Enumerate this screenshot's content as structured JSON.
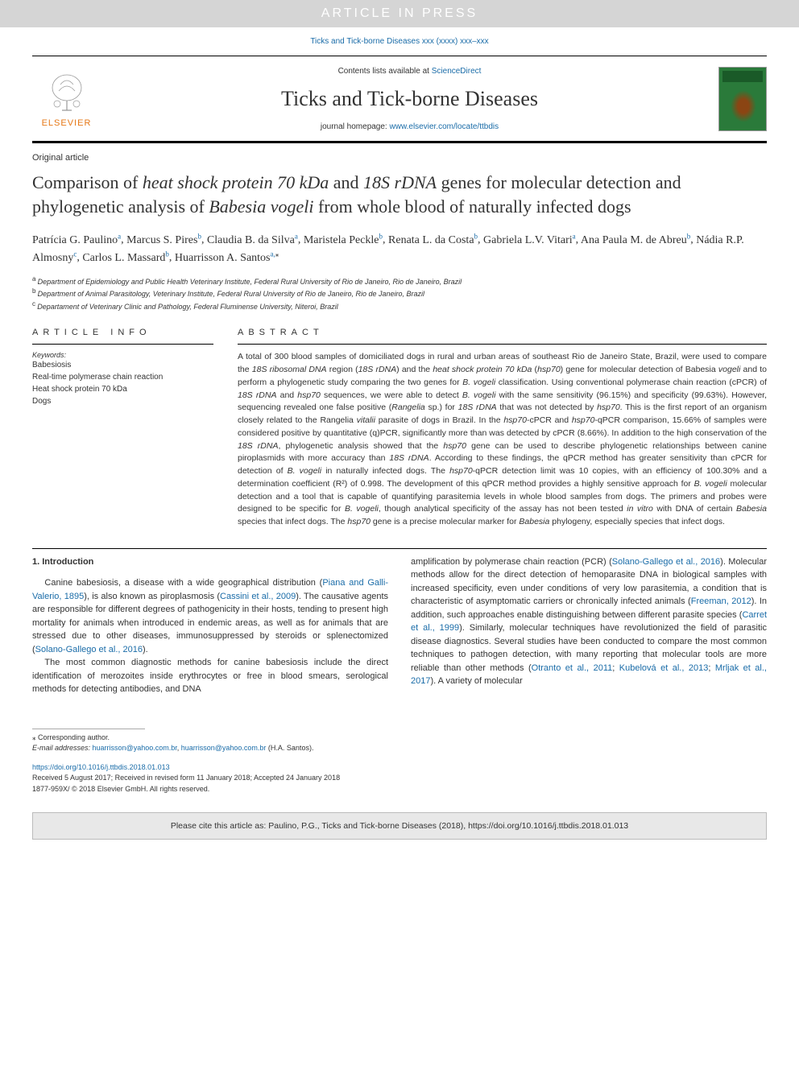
{
  "banner": {
    "text": "ARTICLE IN PRESS"
  },
  "citation_top": "Ticks and Tick-borne Diseases xxx (xxxx) xxx–xxx",
  "header": {
    "contents_prefix": "Contents lists available at ",
    "contents_link": "ScienceDirect",
    "journal_title": "Ticks and Tick-borne Diseases",
    "homepage_prefix": "journal homepage: ",
    "homepage_link": "www.elsevier.com/locate/ttbdis",
    "elsevier_text": "ELSEVIER"
  },
  "article_type": "Original article",
  "title_parts": {
    "p1": "Comparison of ",
    "i1": "heat shock protein 70 kDa",
    "p2": " and ",
    "i2": "18S rDNA",
    "p3": " genes for molecular detection and phylogenetic analysis of ",
    "i3": "Babesia vogeli",
    "p4": " from whole blood of naturally infected dogs"
  },
  "authors": [
    {
      "name": "Patrícia G. Paulino",
      "aff": "a"
    },
    {
      "name": "Marcus S. Pires",
      "aff": "b"
    },
    {
      "name": "Claudia B. da Silva",
      "aff": "a"
    },
    {
      "name": "Maristela Peckle",
      "aff": "b"
    },
    {
      "name": "Renata L. da Costa",
      "aff": "b"
    },
    {
      "name": "Gabriela L.V. Vitari",
      "aff": "a"
    },
    {
      "name": "Ana Paula M. de Abreu",
      "aff": "b"
    },
    {
      "name": "Nádia R.P. Almosny",
      "aff": "c"
    },
    {
      "name": "Carlos L. Massard",
      "aff": "b"
    },
    {
      "name": "Huarrisson A. Santos",
      "aff": "a,",
      "corr": "⁎"
    }
  ],
  "affiliations": [
    {
      "key": "a",
      "text": "Department of Epidemiology and Public Health Veterinary Institute, Federal Rural University of Rio de Janeiro, Rio de Janeiro, Brazil"
    },
    {
      "key": "b",
      "text": "Department of Animal Parasitology, Veterinary Institute, Federal Rural University of Rio de Janeiro, Rio de Janeiro, Brazil"
    },
    {
      "key": "c",
      "text": "Departament of Veterinary Clinic and Pathology, Federal Fluminense University, Niteroi, Brazil"
    }
  ],
  "info": {
    "heading": "ARTICLE INFO",
    "keywords_label": "Keywords:",
    "keywords": [
      "Babesiosis",
      "Real-time polymerase chain reaction",
      "Heat shock protein 70 kDa",
      "Dogs"
    ]
  },
  "abstract": {
    "heading": "ABSTRACT",
    "text": "A total of 300 blood samples of domiciliated dogs in rural and urban areas of southeast Rio de Janeiro State, Brazil, were used to compare the 18S ribosomal DNA region (18S rDNA) and the heat shock protein 70 kDa (hsp70) gene for molecular detection of Babesia vogeli and to perform a phylogenetic study comparing the two genes for B. vogeli classification. Using conventional polymerase chain reaction (cPCR) of 18S rDNA and hsp70 sequences, we were able to detect B. vogeli with the same sensitivity (96.15%) and specificity (99.63%). However, sequencing revealed one false positive (Rangelia sp.) for 18S rDNA that was not detected by hsp70. This is the first report of an organism closely related to the Rangelia vitalii parasite of dogs in Brazil. In the hsp70-cPCR and hsp70-qPCR comparison, 15.66% of samples were considered positive by quantitative (q)PCR, significantly more than was detected by cPCR (8.66%). In addition to the high conservation of the 18S rDNA, phylogenetic analysis showed that the hsp70 gene can be used to describe phylogenetic relationships between canine piroplasmids with more accuracy than 18S rDNA. According to these findings, the qPCR method has greater sensitivity than cPCR for detection of B. vogeli in naturally infected dogs. The hsp70-qPCR detection limit was 10 copies, with an efficiency of 100.30% and a determination coefficient (R²) of 0.998. The development of this qPCR method provides a highly sensitive approach for B. vogeli molecular detection and a tool that is capable of quantifying parasitemia levels in whole blood samples from dogs. The primers and probes were designed to be specific for B. vogeli, though analytical specificity of the assay has not been tested in vitro with DNA of certain Babesia species that infect dogs. The hsp70 gene is a precise molecular marker for Babesia phylogeny, especially species that infect dogs."
  },
  "intro": {
    "heading": "1. Introduction",
    "col1_p1a": "Canine babesiosis, a disease with a wide geographical distribution (",
    "col1_p1_link1": "Piana and Galli-Valerio, 1895",
    "col1_p1b": "), is also known as piroplasmosis (",
    "col1_p1_link2": "Cassini et al., 2009",
    "col1_p1c": "). The causative agents are responsible for different degrees of pathogenicity in their hosts, tending to present high mortality for animals when introduced in endemic areas, as well as for animals that are stressed due to other diseases, immunosuppressed by steroids or splenectomized (",
    "col1_p1_link3": "Solano-Gallego et al., 2016",
    "col1_p1d": ").",
    "col1_p2": "The most common diagnostic methods for canine babesiosis include the direct identification of merozoites inside erythrocytes or free in blood smears, serological methods for detecting antibodies, and DNA",
    "col2a": "amplification by polymerase chain reaction (PCR) (",
    "col2_link1": "Solano-Gallego et al., 2016",
    "col2b": "). Molecular methods allow for the direct detection of hemoparasite DNA in biological samples with increased specificity, even under conditions of very low parasitemia, a condition that is characteristic of asymptomatic carriers or chronically infected animals (",
    "col2_link2": "Freeman, 2012",
    "col2c": "). In addition, such approaches enable distinguishing between different parasite species (",
    "col2_link3": "Carret et al., 1999",
    "col2d": "). Similarly, molecular techniques have revolutionized the field of parasitic disease diagnostics. Several studies have been conducted to compare the most common techniques to pathogen detection, with many reporting that molecular tools are more reliable than other methods (",
    "col2_link4": "Otranto et al., 2011",
    "col2e": "; ",
    "col2_link5": "Kubelová et al., 2013",
    "col2f": "; ",
    "col2_link6": "Mrljak et al., 2017",
    "col2g": "). A variety of molecular"
  },
  "footer": {
    "corr_label": "⁎ Corresponding author.",
    "email_label": "E-mail addresses: ",
    "email1": "huarrisson@yahoo.com.br",
    "email_sep": ", ",
    "email2": "huarrisson@yahoo.com.br",
    "email_suffix": " (H.A. Santos).",
    "doi": "https://doi.org/10.1016/j.ttbdis.2018.01.013",
    "received": "Received 5 August 2017; Received in revised form 11 January 2018; Accepted 24 January 2018",
    "copyright": "1877-959X/ © 2018 Elsevier GmbH. All rights reserved."
  },
  "bottom_bar": "Please cite this article as: Paulino, P.G., Ticks and Tick-borne Diseases (2018), https://doi.org/10.1016/j.ttbdis.2018.01.013",
  "colors": {
    "link": "#1a6ca8",
    "banner_bg": "#d5d5d5",
    "elsevier_orange": "#e67817",
    "cover_green": "#2a7a3a"
  }
}
